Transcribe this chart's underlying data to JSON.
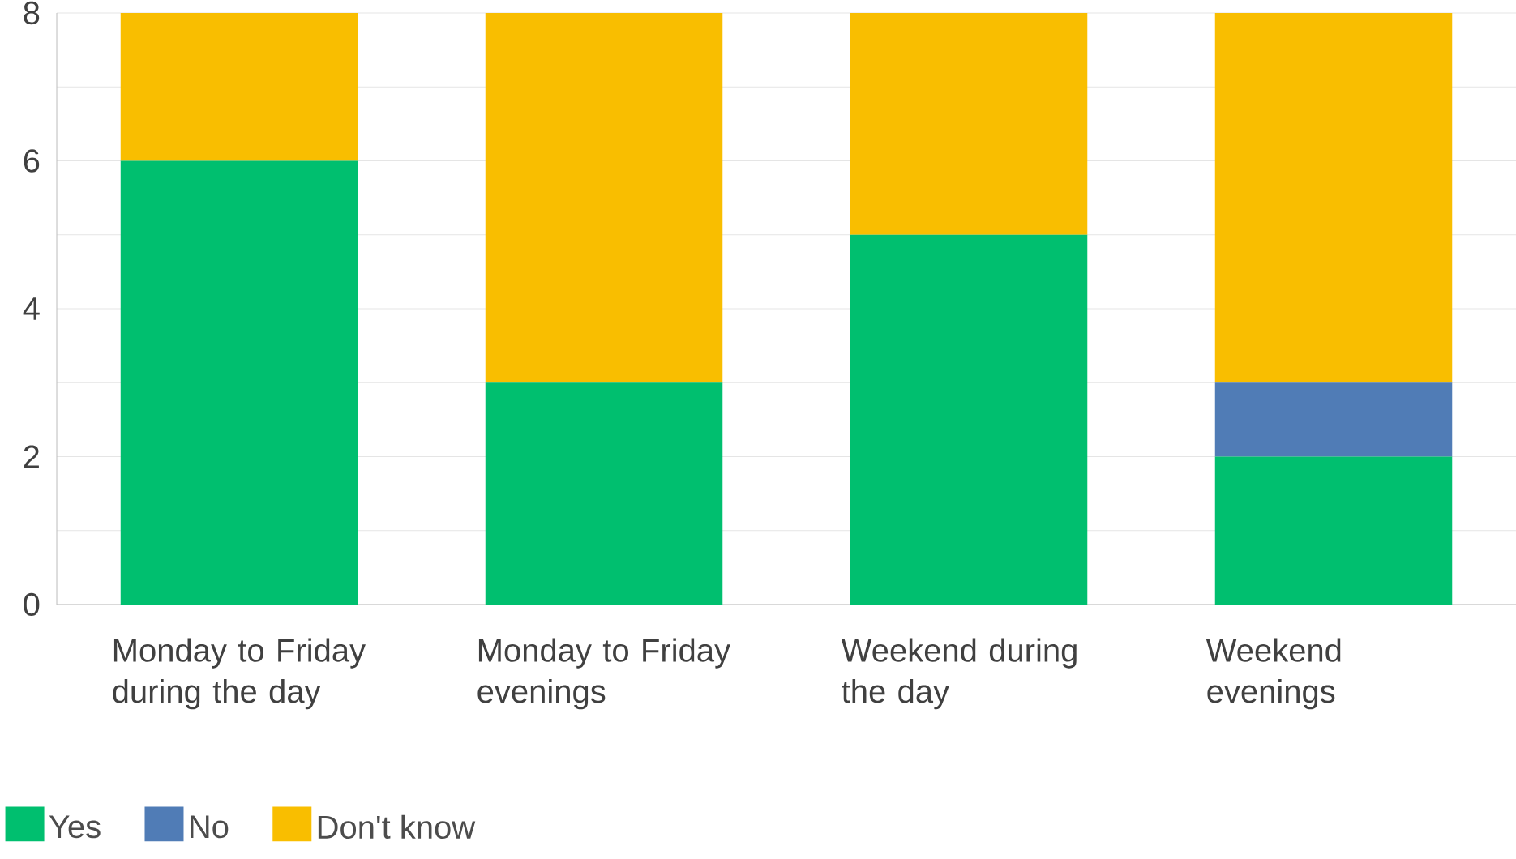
{
  "chart_data": {
    "type": "bar",
    "stacked": true,
    "categories": [
      "Monday to Friday during the day",
      "Monday to Friday evenings",
      "Weekend during the day",
      "Weekend evenings"
    ],
    "series": [
      {
        "name": "Yes",
        "color": "#00bf6f",
        "values": [
          6,
          3,
          5,
          2
        ]
      },
      {
        "name": "No",
        "color": "#507cb6",
        "values": [
          0,
          0,
          0,
          1
        ]
      },
      {
        "name": "Don't know",
        "color": "#f9be00",
        "values": [
          2,
          5,
          3,
          5
        ]
      }
    ],
    "ylim": [
      0,
      8
    ],
    "yticks": [
      0,
      {
        "value": 1,
        "label": null
      },
      2,
      {
        "value": 3,
        "label": null
      },
      4,
      {
        "value": 5,
        "label": null
      },
      6,
      {
        "value": 7,
        "label": null
      },
      8
    ],
    "grid": "y",
    "legend": "bottom left"
  }
}
